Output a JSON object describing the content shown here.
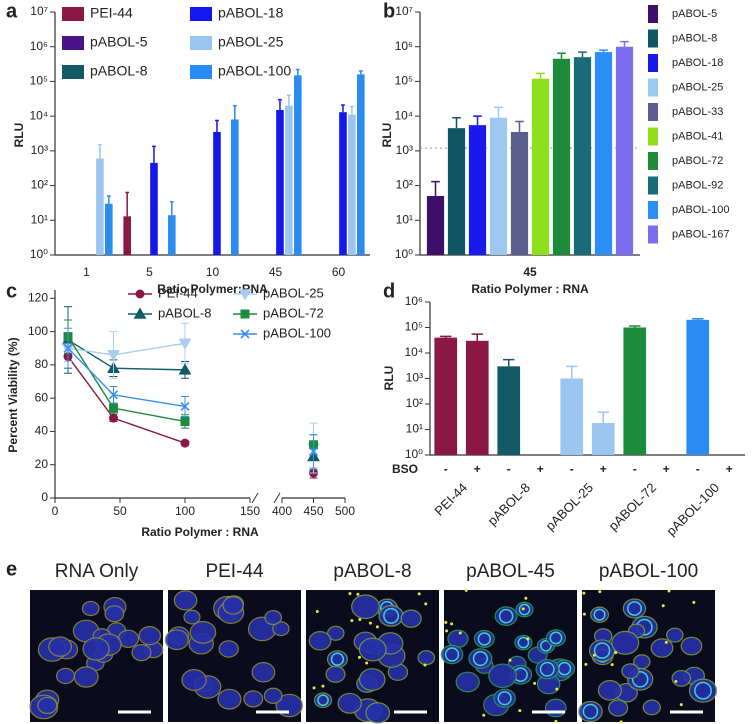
{
  "chart_data": [
    {
      "panel": "a",
      "type": "bar",
      "y_scale": "log",
      "y_label": "RLU",
      "x_label": "Ratio Polymer:RNA",
      "categories": [
        "1",
        "5",
        "10",
        "45",
        "60"
      ],
      "series": [
        {
          "name": "PEI-44",
          "color": "#8a1744",
          "values": [
            null,
            13,
            null,
            null,
            null
          ],
          "errors": [
            null,
            50,
            null,
            null,
            null
          ]
        },
        {
          "name": "pABOL-5",
          "color": "#4a1488",
          "values": [
            null,
            null,
            null,
            null,
            null
          ],
          "errors": [
            null,
            null,
            null,
            null,
            null
          ]
        },
        {
          "name": "pABOL-8",
          "color": "#145a66",
          "values": [
            null,
            null,
            null,
            null,
            null
          ],
          "errors": [
            null,
            null,
            null,
            null,
            null
          ]
        },
        {
          "name": "pABOL-18",
          "color": "#1616ee",
          "values": [
            null,
            450,
            3500,
            15000,
            13000
          ],
          "errors": [
            null,
            900,
            4000,
            15000,
            8000
          ]
        },
        {
          "name": "pABOL-25",
          "color": "#9cc6f2",
          "values": [
            600,
            null,
            null,
            20000,
            11000
          ],
          "errors": [
            900,
            null,
            null,
            20000,
            8000
          ]
        },
        {
          "name": "pABOL-100",
          "color": "#2a8cf2",
          "values": [
            30,
            14,
            8000,
            150000,
            160000
          ],
          "errors": [
            20,
            20,
            12000,
            70000,
            40000
          ]
        }
      ],
      "ylim": [
        1,
        10000000
      ],
      "yticks": [
        {
          "value": 1,
          "label": "10⁰"
        },
        {
          "value": 10,
          "label": "10¹"
        },
        {
          "value": 100,
          "label": "10²"
        },
        {
          "value": 1000,
          "label": "10³"
        },
        {
          "value": 10000,
          "label": "10⁴"
        },
        {
          "value": 100000,
          "label": "10⁵"
        },
        {
          "value": 1000000,
          "label": "10⁶"
        },
        {
          "value": 10000000,
          "label": "10⁷"
        }
      ]
    },
    {
      "panel": "b",
      "type": "bar",
      "y_scale": "log",
      "y_label": "RLU",
      "x_label": "Ratio Polymer : RNA",
      "categories": [
        "45"
      ],
      "series": [
        {
          "name": "pABOL-5",
          "color": "#3d0f6b",
          "values": [
            50
          ],
          "errors": [
            80
          ]
        },
        {
          "name": "pABOL-8",
          "color": "#0f5562",
          "values": [
            4500
          ],
          "errors": [
            4500
          ]
        },
        {
          "name": "pABOL-18",
          "color": "#1a1aee",
          "values": [
            5500
          ],
          "errors": [
            4500
          ]
        },
        {
          "name": "pABOL-25",
          "color": "#9cc8f2",
          "values": [
            9000
          ],
          "errors": [
            9000
          ]
        },
        {
          "name": "pABOL-33",
          "color": "#5b5f8f",
          "values": [
            3500
          ],
          "errors": [
            3500
          ]
        },
        {
          "name": "pABOL-41",
          "color": "#8fe01a",
          "values": [
            120000
          ],
          "errors": [
            50000
          ]
        },
        {
          "name": "pABOL-72",
          "color": "#1e8a3c",
          "values": [
            450000
          ],
          "errors": [
            200000
          ]
        },
        {
          "name": "pABOL-92",
          "color": "#1a6b78",
          "values": [
            500000
          ],
          "errors": [
            200000
          ]
        },
        {
          "name": "pABOL-100",
          "color": "#2a8ef5",
          "values": [
            700000
          ],
          "errors": [
            100000
          ]
        },
        {
          "name": "pABOL-167",
          "color": "#7b6cf0",
          "values": [
            1000000
          ],
          "errors": [
            400000
          ]
        }
      ],
      "threshold": 1200,
      "ylim": [
        1,
        10000000
      ],
      "yticks": [
        {
          "value": 1,
          "label": "10⁰"
        },
        {
          "value": 10,
          "label": "10¹"
        },
        {
          "value": 100,
          "label": "10²"
        },
        {
          "value": 1000,
          "label": "10³"
        },
        {
          "value": 10000,
          "label": "10⁴"
        },
        {
          "value": 100000,
          "label": "10⁵"
        },
        {
          "value": 1000000,
          "label": "10⁶"
        },
        {
          "value": 10000000,
          "label": "10⁷"
        }
      ]
    },
    {
      "panel": "c",
      "type": "line",
      "y_label": "Percent Viability (%)",
      "x_label": "Ratio Polymer : RNA",
      "x": [
        10,
        45,
        100,
        450
      ],
      "series": [
        {
          "name": "PEI-44",
          "color": "#8a1744",
          "marker": "circle",
          "values": [
            85,
            48,
            33,
            15
          ],
          "errors": [
            7,
            2,
            1,
            3
          ]
        },
        {
          "name": "pABOL-8",
          "color": "#145a66",
          "marker": "triangle",
          "values": [
            95,
            78,
            77,
            25
          ],
          "errors": [
            20,
            5,
            5,
            8
          ]
        },
        {
          "name": "pABOL-25",
          "color": "#a9cdf2",
          "marker": "triangle-down",
          "values": [
            90,
            86,
            93,
            30
          ],
          "errors": [
            8,
            14,
            12,
            15
          ]
        },
        {
          "name": "pABOL-72",
          "color": "#1e8a3c",
          "marker": "square",
          "values": [
            97,
            54,
            46,
            32
          ],
          "errors": [
            10,
            3,
            4,
            6
          ]
        },
        {
          "name": "pABOL-100",
          "color": "#3a8ff0",
          "marker": "x",
          "values": [
            90,
            62,
            55,
            28
          ],
          "errors": [
            12,
            5,
            6,
            10
          ]
        }
      ],
      "xlim": [
        0,
        500
      ],
      "xbreak": [
        150,
        400
      ],
      "xticks": [
        0,
        50,
        100,
        150,
        400,
        450,
        500
      ],
      "ylim": [
        0,
        125
      ],
      "yticks": [
        0,
        20,
        40,
        60,
        80,
        100,
        120
      ]
    },
    {
      "panel": "d",
      "type": "bar",
      "y_scale": "log",
      "y_label": "RLU",
      "row_label": "BSO",
      "categories": [
        "PEI-44",
        "pABOL-8",
        "pABOL-25",
        "pABOL-72",
        "pABOL-100"
      ],
      "colors": [
        "#8a1744",
        "#145a66",
        "#9cc6f2",
        "#1e8a3c",
        "#2a8cf2"
      ],
      "series": [
        {
          "name": "-",
          "values": [
            40000,
            3000,
            1000,
            100000,
            200000
          ],
          "errors": [
            5000,
            2500,
            2000,
            15000,
            20000
          ]
        },
        {
          "name": "+",
          "values": [
            30000,
            null,
            18,
            null,
            null
          ],
          "errors": [
            25000,
            null,
            30,
            null,
            null
          ]
        }
      ],
      "ylim": [
        1,
        1000000
      ],
      "yticks": [
        {
          "value": 1,
          "label": "10⁰"
        },
        {
          "value": 10,
          "label": "10¹"
        },
        {
          "value": 100,
          "label": "10²"
        },
        {
          "value": 1000,
          "label": "10³"
        },
        {
          "value": 10000,
          "label": "10⁴"
        },
        {
          "value": 100000,
          "label": "10⁵"
        },
        {
          "value": 1000000,
          "label": "10⁶"
        }
      ]
    }
  ],
  "panel_e": {
    "label": "e",
    "images": [
      "RNA Only",
      "PEI-44",
      "pABOL-8",
      "pABOL-45",
      "pABOL-100"
    ]
  }
}
